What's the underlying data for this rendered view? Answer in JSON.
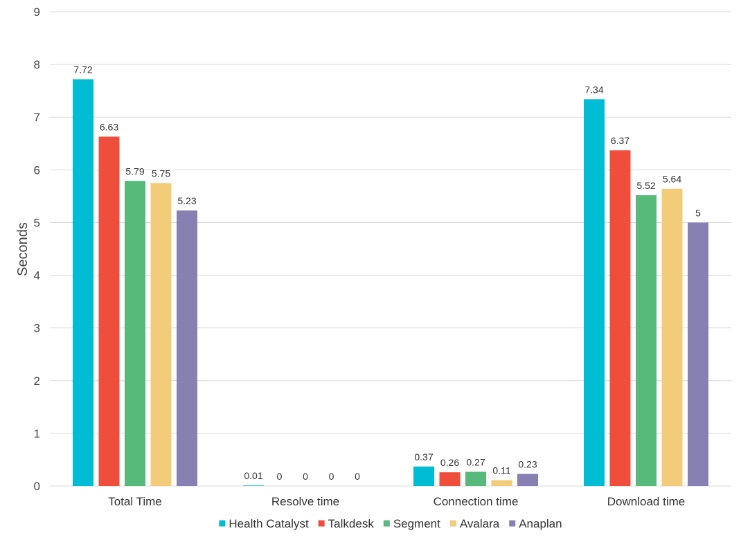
{
  "chart_data": {
    "type": "bar",
    "title": "",
    "xlabel": "",
    "ylabel": "Seconds",
    "ylim": [
      0,
      9
    ],
    "yticks": [
      0,
      1,
      2,
      3,
      4,
      5,
      6,
      7,
      8,
      9
    ],
    "grid": true,
    "legend_position": "bottom",
    "categories": [
      "Total Time",
      "Resolve time",
      "Connection time",
      "Download time"
    ],
    "series": [
      {
        "name": "Health Catalyst",
        "color": "#00bcd4",
        "values": [
          7.72,
          0.01,
          0.37,
          7.34
        ],
        "labels": [
          "7.72",
          "0.01",
          "0.37",
          "7.34"
        ]
      },
      {
        "name": "Talkdesk",
        "color": "#ef4e3c",
        "values": [
          6.63,
          0,
          0.26,
          6.37
        ],
        "labels": [
          "6.63",
          "0",
          "0.26",
          "6.37"
        ]
      },
      {
        "name": "Segment",
        "color": "#57b97a",
        "values": [
          5.79,
          0,
          0.27,
          5.52
        ],
        "labels": [
          "5.79",
          "0",
          "0.27",
          "5.52"
        ]
      },
      {
        "name": "Avalara",
        "color": "#f2cc78",
        "values": [
          5.75,
          0,
          0.11,
          5.64
        ],
        "labels": [
          "5.75",
          "0",
          "0.11",
          "5.64"
        ]
      },
      {
        "name": "Anaplan",
        "color": "#8781b3",
        "values": [
          5.23,
          0,
          0.23,
          5
        ],
        "labels": [
          "5.23",
          "0",
          "0.23",
          "5"
        ]
      }
    ]
  }
}
